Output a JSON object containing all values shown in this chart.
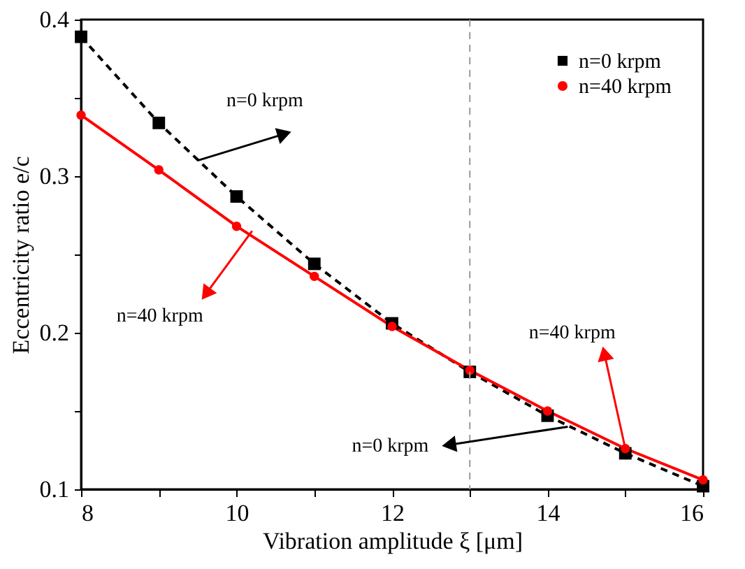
{
  "chart_data": {
    "type": "line",
    "xlabel": "Vibration amplitude ξ [μm]",
    "ylabel": "Eccentricity ratio e/c",
    "x": [
      8,
      9,
      10,
      11,
      12,
      13,
      14,
      15,
      16
    ],
    "xlim": [
      8,
      16
    ],
    "xticks": [
      8,
      {
        "value": 9,
        "label": null
      },
      10,
      {
        "value": 11,
        "label": null
      },
      12,
      {
        "value": 13,
        "label": null
      },
      14,
      {
        "value": 15,
        "label": null
      },
      16
    ],
    "ylim": [
      0.1,
      0.4
    ],
    "yticks": [
      0.1,
      {
        "value": 0.15,
        "label": null
      },
      0.2,
      {
        "value": 0.25,
        "label": null
      },
      0.3,
      {
        "value": 0.35,
        "label": null
      },
      0.4
    ],
    "series": [
      {
        "name": "n=0   krpm",
        "color": "#000000",
        "marker": "square",
        "line_style": "dashed",
        "values": [
          0.389,
          0.334,
          0.287,
          0.244,
          0.206,
          0.175,
          0.147,
          0.123,
          0.102
        ]
      },
      {
        "name": "n=40 krpm",
        "color": "#ff0000",
        "marker": "circle",
        "line_style": "solid",
        "values": [
          0.339,
          0.304,
          0.268,
          0.236,
          0.204,
          0.176,
          0.15,
          0.126,
          0.106
        ]
      }
    ],
    "ref_lines": [
      {
        "axis": "x",
        "value": 13,
        "color": "#999999",
        "line_style": "dashed"
      }
    ],
    "annotations": [
      {
        "text": "n=0 krpm",
        "x": 9.5,
        "y": 0.31
      },
      {
        "text": "n=40 krpm",
        "x": 10.2,
        "y": 0.265
      },
      {
        "text": "n=0 krpm",
        "x": 14.26,
        "y": 0.14
      },
      {
        "text": "n=40 krpm",
        "x": 15,
        "y": 0.126
      }
    ],
    "legend": "top right",
    "grid": false
  }
}
